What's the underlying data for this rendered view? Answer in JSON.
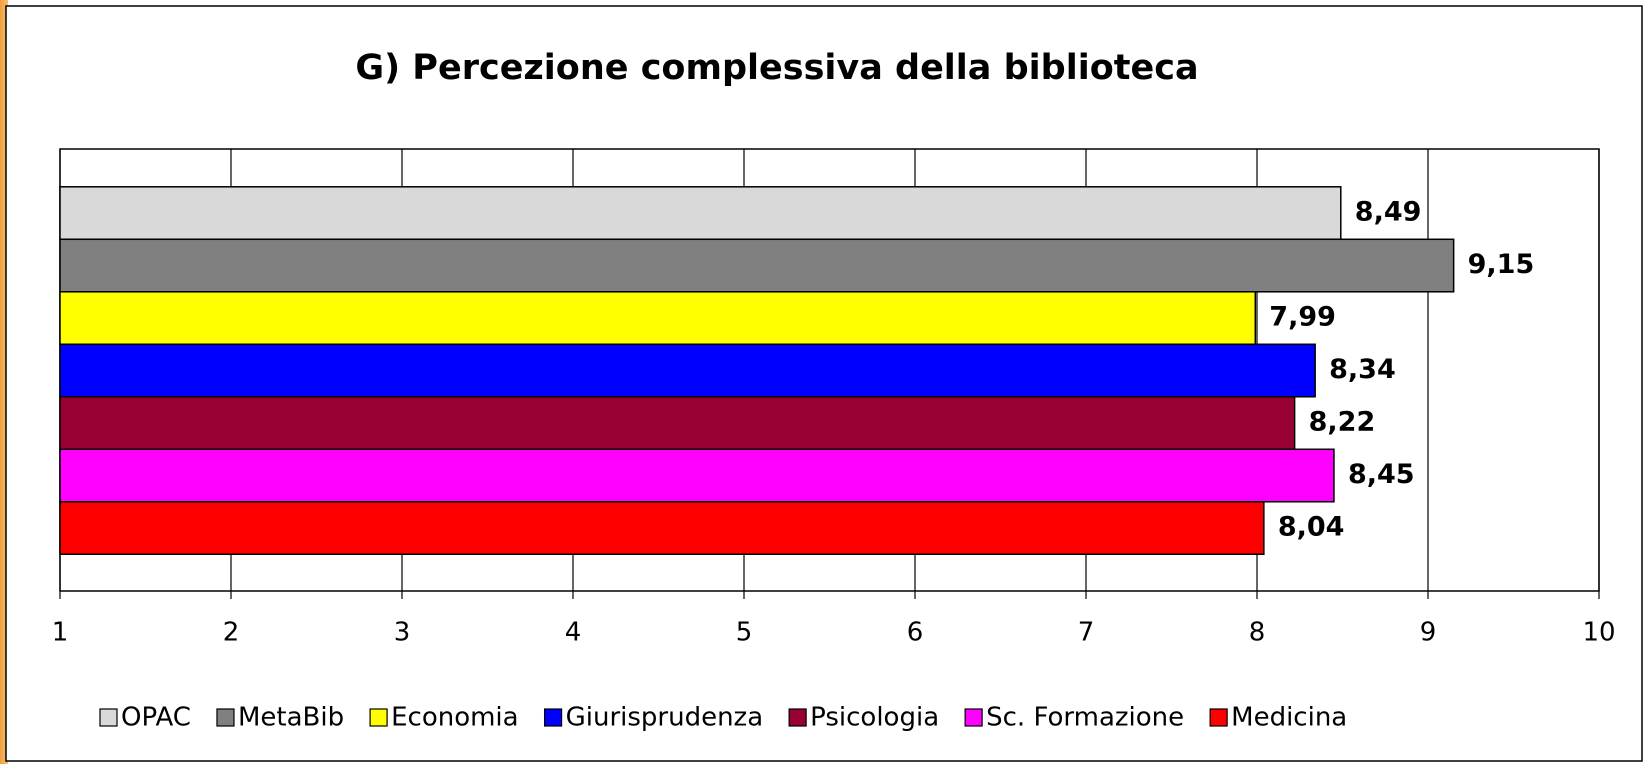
{
  "chart_data": {
    "type": "bar",
    "orientation": "horizontal",
    "title": "G) Percezione complessiva della biblioteca",
    "series": [
      {
        "name": "OPAC",
        "color": "#d9d9d9",
        "values": [
          8.49
        ],
        "value_labels": [
          "8,49"
        ]
      },
      {
        "name": "MetaBib",
        "color": "#808080",
        "values": [
          9.15
        ],
        "value_labels": [
          "9,15"
        ]
      },
      {
        "name": "Economia",
        "color": "#ffff00",
        "values": [
          7.99
        ],
        "value_labels": [
          "7,99"
        ]
      },
      {
        "name": "Giurisprudenza",
        "color": "#0000ff",
        "values": [
          8.34
        ],
        "value_labels": [
          "8,34"
        ]
      },
      {
        "name": "Psicologia",
        "color": "#990033",
        "values": [
          8.22
        ],
        "value_labels": [
          "8,22"
        ]
      },
      {
        "name": "Sc. Formazione",
        "color": "#ff00ff",
        "values": [
          8.45
        ],
        "value_labels": [
          "8,45"
        ]
      },
      {
        "name": "Medicina",
        "color": "#ff0000",
        "values": [
          8.04
        ],
        "value_labels": [
          "8,04"
        ]
      }
    ],
    "xlim": [
      1,
      10
    ],
    "xticks": [
      1,
      2,
      3,
      4,
      5,
      6,
      7,
      8,
      9,
      10
    ],
    "grid": true,
    "legend": "bottom"
  }
}
